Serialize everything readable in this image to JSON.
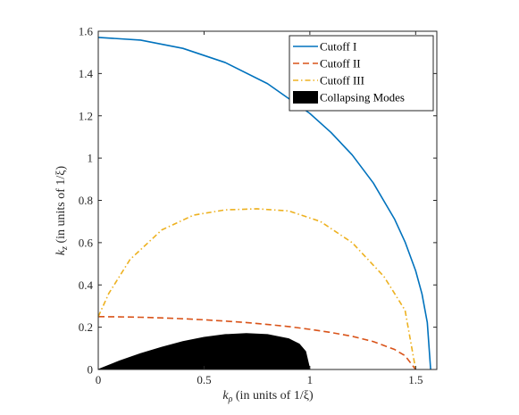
{
  "chart_data": {
    "type": "line",
    "xlabel_main": "k",
    "xlabel_sub": "ρ",
    "xlabel_rest": " (in units of 1/ξ)",
    "ylabel_main": "k",
    "ylabel_sub": "z",
    "ylabel_rest": " (in units of 1/ξ)",
    "xlim": [
      0,
      1.6
    ],
    "ylim": [
      0,
      1.6
    ],
    "xticks": [
      0,
      0.5,
      1,
      1.5
    ],
    "xtick_labels": [
      "0",
      "0.5",
      "1",
      "1.5"
    ],
    "yticks": [
      0,
      0.2,
      0.4,
      0.6,
      0.8,
      1,
      1.2,
      1.4,
      1.6
    ],
    "ytick_labels": [
      "0",
      "0.2",
      "0.4",
      "0.6",
      "0.8",
      "1",
      "1.2",
      "1.4",
      "1.6"
    ],
    "grid": false,
    "legend_position": "top-right",
    "series": [
      {
        "name": "Cutoff I",
        "style": "solid",
        "color": "#0072BD",
        "x": [
          0,
          0.2,
          0.4,
          0.6,
          0.8,
          1.0,
          1.1,
          1.2,
          1.3,
          1.4,
          1.45,
          1.5,
          1.53,
          1.555,
          1.5708
        ],
        "y": [
          1.5708,
          1.558,
          1.519,
          1.452,
          1.352,
          1.211,
          1.121,
          1.015,
          0.882,
          0.712,
          0.603,
          0.467,
          0.357,
          0.222,
          0
        ]
      },
      {
        "name": "Cutoff II",
        "style": "dashed",
        "color": "#D95319",
        "x": [
          0,
          0.1,
          0.2,
          0.3,
          0.4,
          0.5,
          0.6,
          0.7,
          0.8,
          0.9,
          1.0,
          1.1,
          1.2,
          1.3,
          1.4,
          1.45,
          1.5
        ],
        "y": [
          0.25,
          0.249,
          0.247,
          0.244,
          0.24,
          0.235,
          0.229,
          0.222,
          0.213,
          0.203,
          0.19,
          0.175,
          0.157,
          0.132,
          0.095,
          0.065,
          0
        ]
      },
      {
        "name": "Cutoff III",
        "style": "dashdot",
        "color": "#EDB120",
        "x": [
          0,
          0.05,
          0.15,
          0.3,
          0.45,
          0.6,
          0.75,
          0.9,
          1.05,
          1.2,
          1.35,
          1.45,
          1.5
        ],
        "y": [
          0.25,
          0.36,
          0.52,
          0.66,
          0.73,
          0.755,
          0.76,
          0.75,
          0.7,
          0.6,
          0.44,
          0.28,
          0
        ]
      },
      {
        "name": "Collapsing Modes",
        "style": "filled",
        "color": "#000000",
        "x": [
          0,
          0.1,
          0.2,
          0.3,
          0.4,
          0.5,
          0.6,
          0.7,
          0.8,
          0.9,
          0.95,
          0.98,
          1.0
        ],
        "y": [
          0,
          0.04,
          0.075,
          0.105,
          0.132,
          0.152,
          0.165,
          0.17,
          0.165,
          0.145,
          0.12,
          0.085,
          0
        ]
      }
    ]
  }
}
